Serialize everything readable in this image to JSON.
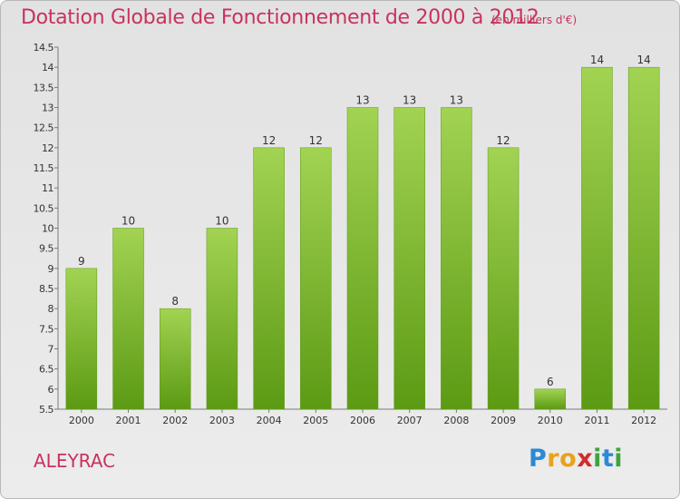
{
  "chart_data": {
    "type": "bar",
    "title": "Dotation Globale de Fonctionnement de 2000 à 2012",
    "subtitle": "(en milliers d'€)",
    "categories": [
      "2000",
      "2001",
      "2002",
      "2003",
      "2004",
      "2005",
      "2006",
      "2007",
      "2008",
      "2009",
      "2010",
      "2011",
      "2012"
    ],
    "values": [
      9,
      10,
      8,
      10,
      12,
      12,
      13,
      13,
      13,
      12,
      6,
      14,
      14
    ],
    "ylim": [
      5.5,
      14.5
    ],
    "yticks": [
      "5.5",
      "6",
      "6.5",
      "7",
      "7.5",
      "8",
      "8.5",
      "9",
      "9.5",
      "10",
      "10.5",
      "11",
      "11.5",
      "12",
      "12.5",
      "13",
      "13.5",
      "14",
      "14.5"
    ],
    "xlabel": "",
    "ylabel": "",
    "grid": false,
    "bar_color_top": "#a2d352",
    "bar_color_bottom": "#5c9a14"
  },
  "footer": {
    "commune": "ALEYRAC",
    "brand_letters": [
      "P",
      "r",
      "o",
      "x",
      "i",
      "t",
      "i"
    ],
    "brand_colors": [
      "#2a8ad6",
      "#e8a21c",
      "#e8a21c",
      "#d02c2c",
      "#3ea43e",
      "#2a8ad6",
      "#3ea43e"
    ]
  },
  "colors": {
    "accent": "#c8325e",
    "axis": "#7a7a7a",
    "label": "#333333"
  }
}
